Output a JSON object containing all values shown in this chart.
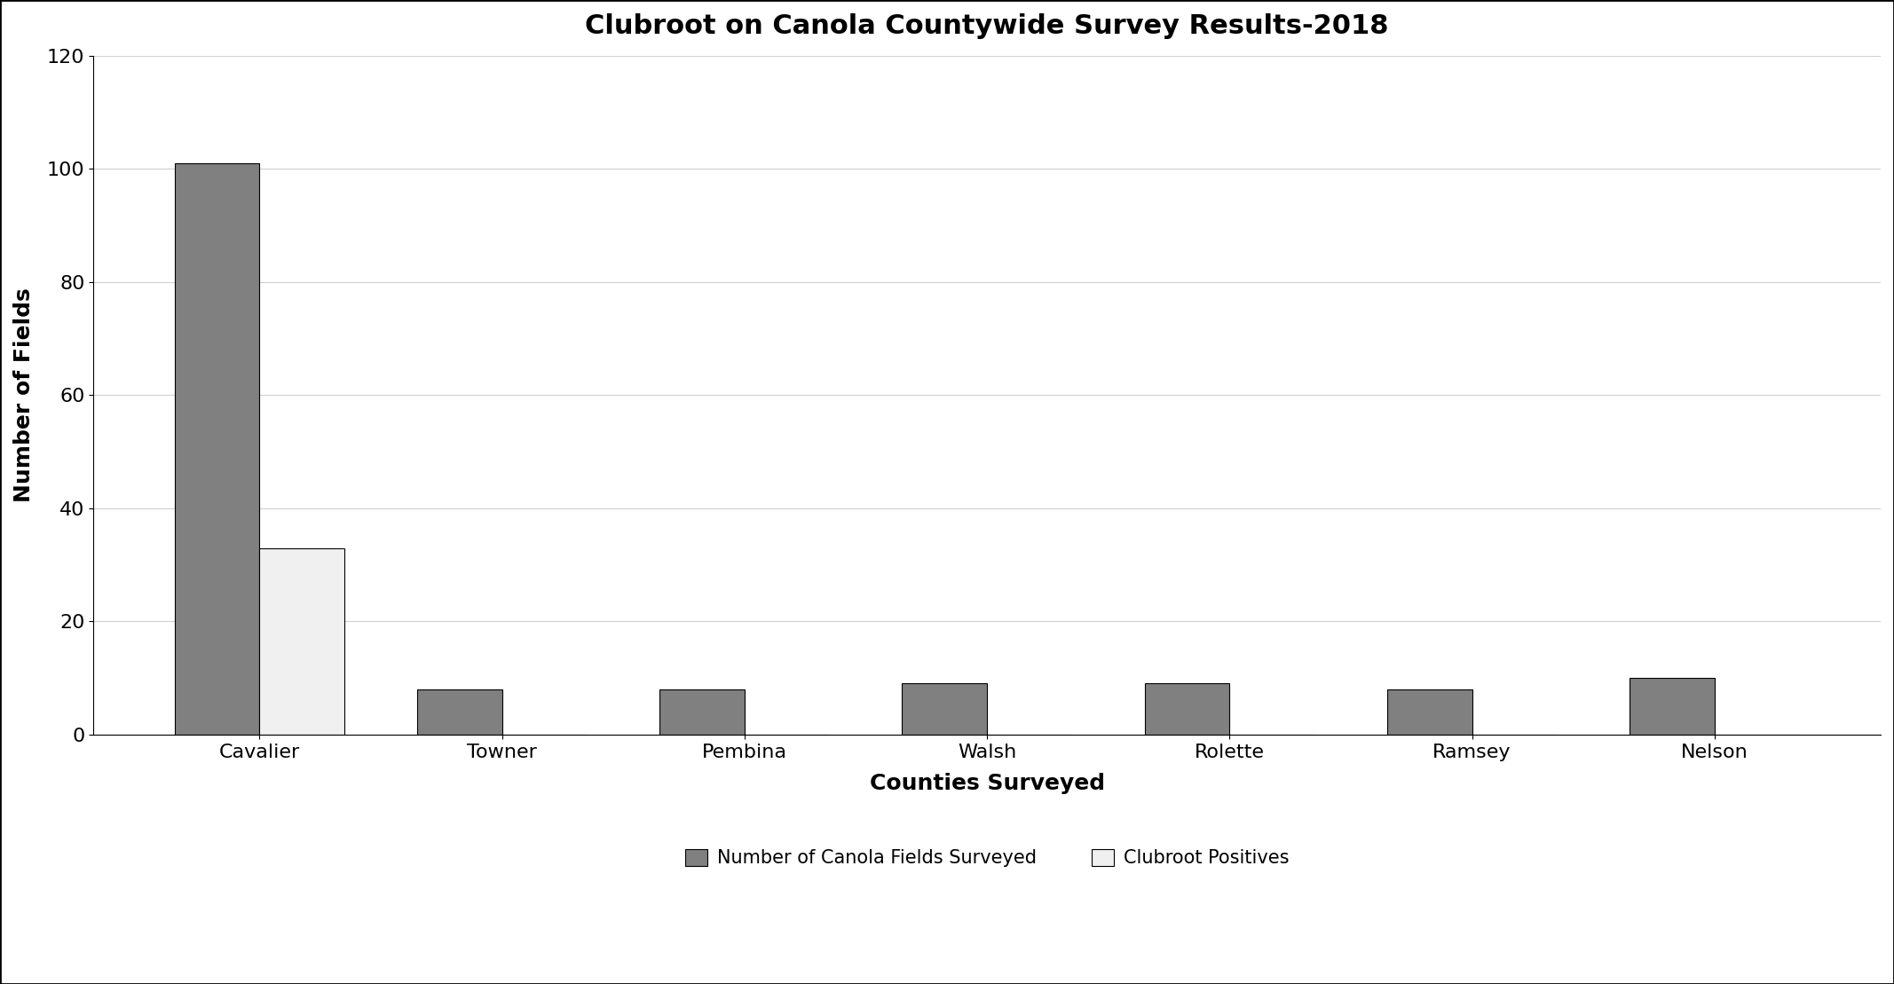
{
  "title": "Clubroot on Canola Countywide Survey Results-2018",
  "xlabel": "Counties Surveyed",
  "ylabel": "Number of Fields",
  "categories": [
    "Cavalier",
    "Towner",
    "Pembina",
    "Walsh",
    "Rolette",
    "Ramsey",
    "Nelson"
  ],
  "surveyed": [
    101,
    8,
    8,
    9,
    9,
    8,
    10
  ],
  "positives": [
    33,
    0,
    0,
    0,
    0,
    0,
    0
  ],
  "bar_color_surveyed": "#808080",
  "bar_color_positives": "#f0f0f0",
  "bar_edgecolor": "#000000",
  "ylim": [
    0,
    120
  ],
  "yticks": [
    0,
    20,
    40,
    60,
    80,
    100,
    120
  ],
  "legend_labels": [
    "Number of Canola Fields Surveyed",
    "Clubroot Positives"
  ],
  "background_color": "#ffffff",
  "grid_color": "#d0d0d0",
  "title_fontsize": 22,
  "axis_label_fontsize": 18,
  "tick_fontsize": 16,
  "legend_fontsize": 15
}
